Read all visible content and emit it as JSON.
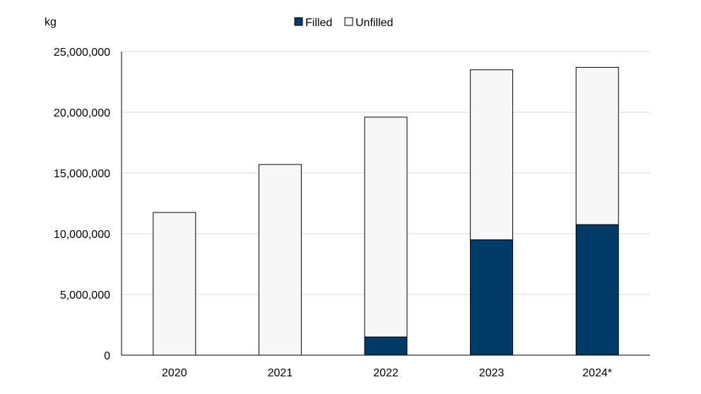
{
  "chart_data": {
    "type": "bar",
    "stacked": true,
    "unit_label": "kg",
    "categories": [
      "2020",
      "2021",
      "2022",
      "2023",
      "2024*"
    ],
    "series": [
      {
        "name": "Filled",
        "color": "#003a66",
        "values": [
          0,
          0,
          1500000,
          9500000,
          10750000
        ]
      },
      {
        "name": "Unfilled",
        "color": "#f7f7f7",
        "values": [
          11750000,
          15700000,
          18100000,
          14000000,
          12950000
        ]
      }
    ],
    "ylim": [
      0,
      25000000
    ],
    "yticks": [
      0,
      5000000,
      10000000,
      15000000,
      20000000,
      25000000
    ],
    "ytick_labels": [
      "0",
      "5,000,000",
      "10,000,000",
      "15,000,000",
      "20,000,000",
      "25,000,000"
    ],
    "grid": true,
    "legend_position": "top-center"
  }
}
